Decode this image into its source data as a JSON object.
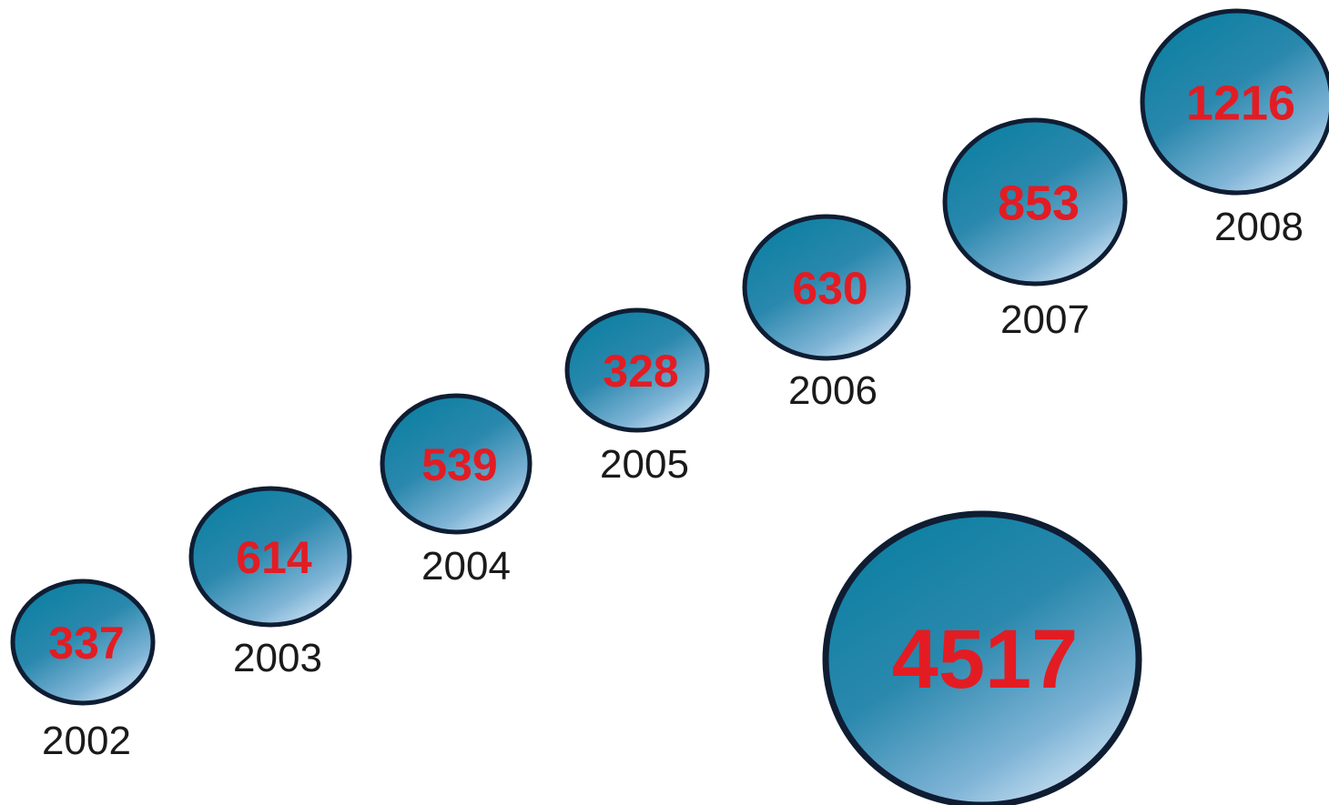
{
  "chart_data": {
    "type": "bubble",
    "categories": [
      "2002",
      "2003",
      "2004",
      "2005",
      "2006",
      "2007",
      "2008"
    ],
    "values": [
      337,
      614,
      539,
      328,
      630,
      853,
      1216
    ],
    "total": {
      "value": 4517
    },
    "colors": {
      "bubble_light": "#c3dcef",
      "bubble_mid": "#3f90b4",
      "bubble_dark": "#0a7fa1",
      "outline": "#0f1d33",
      "value_text": "#e31c23",
      "label_text": "#1a1a1a"
    }
  }
}
